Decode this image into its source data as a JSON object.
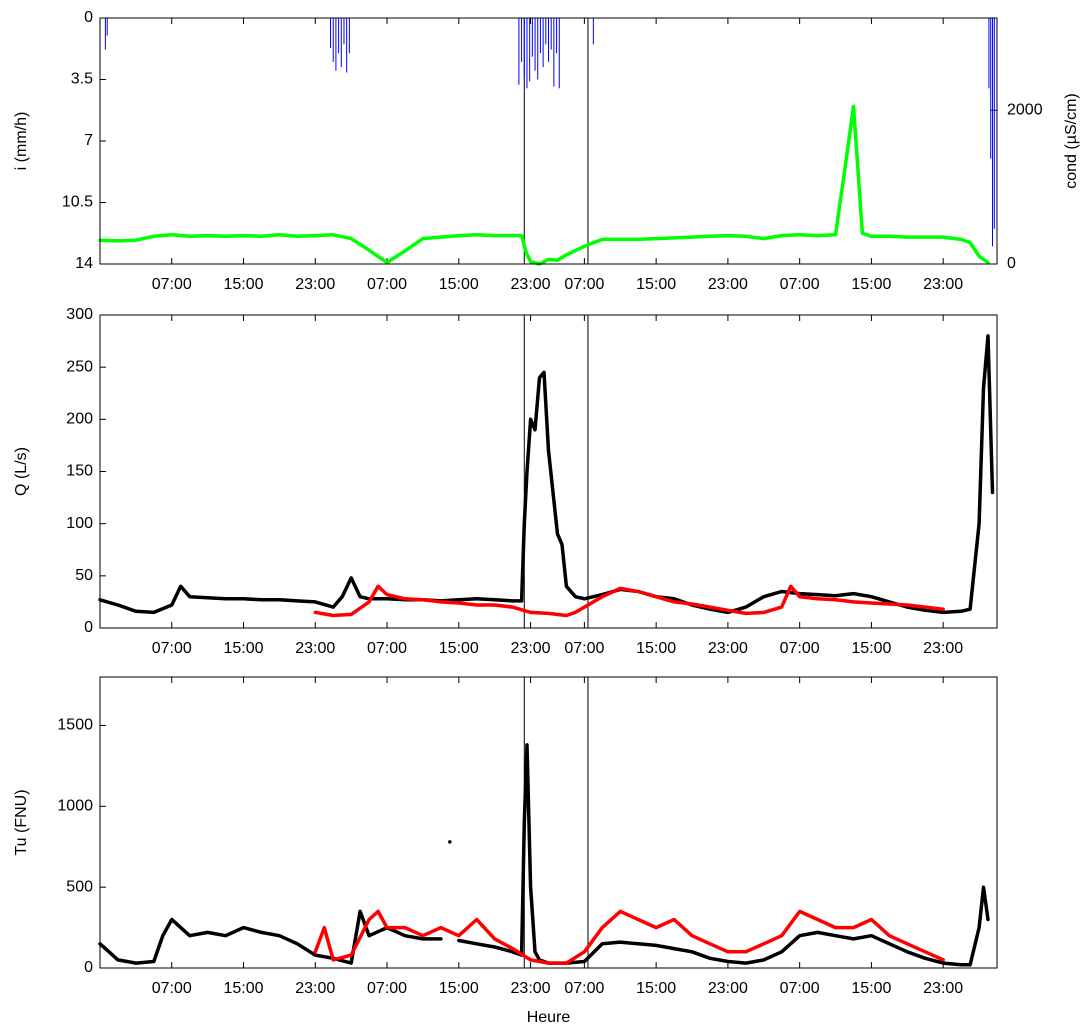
{
  "chart_data": [
    {
      "type": "line",
      "ylabel": "i (mm/h)",
      "y2label": "cond (µS/cm)",
      "xlim": [
        0,
        100
      ],
      "xticks": [
        {
          "value": 8,
          "label": "07:00"
        },
        {
          "value": 16,
          "label": "15:00"
        },
        {
          "value": 24,
          "label": "23:00"
        },
        {
          "value": 32,
          "label": "07:00"
        },
        {
          "value": 40,
          "label": "15:00"
        },
        {
          "value": 48,
          "label": "23:00"
        },
        {
          "value": 54,
          "label": "07:00"
        },
        {
          "value": 62,
          "label": "15:00"
        },
        {
          "value": 70,
          "label": "23:00"
        },
        {
          "value": 78,
          "label": "07:00"
        },
        {
          "value": 86,
          "label": "15:00"
        },
        {
          "value": 94,
          "label": "23:00"
        }
      ],
      "ylim": [
        14,
        0
      ],
      "yticks": [
        0,
        3.5,
        7,
        10.5,
        14
      ],
      "y2lim": [
        0,
        3200
      ],
      "y2ticks": [
        0,
        2000
      ],
      "vlines": [
        47.3,
        54.4
      ],
      "series": [
        {
          "type": "stem",
          "color": "#0000ff",
          "x": [
            0.6,
            0.8,
            25.7,
            26.0,
            26.3,
            26.6,
            26.9,
            27.2,
            27.5,
            27.8,
            46.7,
            47.0,
            47.3,
            47.6,
            47.9,
            48.2,
            48.5,
            48.8,
            49.1,
            49.4,
            49.7,
            50.0,
            50.3,
            50.6,
            50.9,
            51.2,
            55.0,
            99.1,
            99.3,
            99.5,
            99.7
          ],
          "values": [
            1.8,
            1.0,
            1.7,
            2.5,
            3.0,
            2.0,
            2.8,
            1.5,
            3.1,
            2.0,
            3.8,
            2.5,
            3.4,
            4.0,
            3.6,
            2.2,
            3.0,
            3.5,
            2.0,
            2.8,
            1.5,
            2.5,
            1.8,
            3.9,
            2.0,
            4.0,
            1.5,
            4.0,
            8.0,
            13.0,
            12.0
          ]
        },
        {
          "type": "line",
          "color": "#00ff00",
          "axis": "y2",
          "x": [
            0,
            2,
            4,
            6,
            8,
            10,
            12,
            14,
            16,
            18,
            20,
            22,
            24,
            26,
            28,
            30,
            32,
            34,
            36,
            38,
            40,
            42,
            44,
            46,
            47,
            47.5,
            48,
            49,
            50,
            51,
            52,
            54,
            56,
            58,
            60,
            62,
            64,
            66,
            68,
            70,
            72,
            74,
            76,
            78,
            80,
            82,
            83,
            84,
            85,
            86,
            88,
            90,
            92,
            94,
            96,
            97,
            98,
            99
          ],
          "values": [
            310,
            300,
            310,
            360,
            380,
            360,
            370,
            360,
            370,
            360,
            380,
            360,
            370,
            380,
            330,
            180,
            20,
            170,
            330,
            350,
            370,
            380,
            370,
            370,
            370,
            150,
            30,
            0,
            60,
            50,
            120,
            230,
            320,
            320,
            320,
            330,
            340,
            350,
            360,
            370,
            360,
            330,
            370,
            380,
            370,
            380,
            1200,
            2050,
            400,
            360,
            360,
            350,
            350,
            350,
            320,
            280,
            100,
            20
          ]
        }
      ]
    },
    {
      "type": "line",
      "ylabel": "Q (L/s)",
      "xlim": [
        0,
        100
      ],
      "xticks": [
        {
          "value": 8,
          "label": "07:00"
        },
        {
          "value": 16,
          "label": "15:00"
        },
        {
          "value": 24,
          "label": "23:00"
        },
        {
          "value": 32,
          "label": "07:00"
        },
        {
          "value": 40,
          "label": "15:00"
        },
        {
          "value": 48,
          "label": "23:00"
        },
        {
          "value": 54,
          "label": "07:00"
        },
        {
          "value": 62,
          "label": "15:00"
        },
        {
          "value": 70,
          "label": "23:00"
        },
        {
          "value": 78,
          "label": "07:00"
        },
        {
          "value": 86,
          "label": "15:00"
        },
        {
          "value": 94,
          "label": "23:00"
        }
      ],
      "ylim": [
        0,
        300
      ],
      "yticks": [
        0,
        50,
        100,
        150,
        200,
        250,
        300
      ],
      "vlines": [
        47.3,
        54.4
      ],
      "series": [
        {
          "type": "line",
          "color": "#000000",
          "x": [
            0,
            2,
            4,
            6,
            8,
            9,
            10,
            12,
            14,
            16,
            18,
            20,
            22,
            24,
            26,
            27,
            28,
            29,
            30,
            32,
            34,
            36,
            38,
            40,
            42,
            44,
            46,
            47,
            47.3,
            47.6,
            48,
            48.5,
            49,
            49.5,
            50,
            50.5,
            51,
            51.5,
            52,
            53,
            54,
            56,
            58,
            60,
            62,
            64,
            66,
            68,
            70,
            72,
            74,
            76,
            78,
            80,
            82,
            84,
            86,
            88,
            90,
            92,
            94,
            96,
            97,
            98,
            98.5,
            99,
            99.5
          ],
          "values": [
            27,
            22,
            16,
            15,
            22,
            40,
            30,
            29,
            28,
            28,
            27,
            27,
            26,
            25,
            20,
            30,
            48,
            30,
            28,
            28,
            27,
            27,
            26,
            27,
            28,
            27,
            26,
            26,
            100,
            150,
            200,
            190,
            240,
            245,
            170,
            130,
            90,
            80,
            40,
            30,
            28,
            32,
            37,
            35,
            30,
            28,
            22,
            18,
            15,
            20,
            30,
            35,
            33,
            32,
            31,
            33,
            30,
            25,
            20,
            17,
            15,
            16,
            18,
            100,
            230,
            280,
            130
          ]
        },
        {
          "type": "line",
          "color": "#ff0000",
          "x": [
            24,
            26,
            28,
            30,
            31,
            32,
            34,
            36,
            38,
            40,
            42,
            44,
            46,
            48,
            50,
            52,
            53,
            54,
            56,
            58,
            60,
            62,
            64,
            66,
            68,
            70,
            72,
            74,
            76,
            77,
            78,
            80,
            82,
            84,
            86,
            88,
            90,
            92,
            94
          ],
          "values": [
            15,
            12,
            13,
            25,
            40,
            32,
            28,
            27,
            25,
            24,
            22,
            22,
            20,
            15,
            14,
            12,
            15,
            20,
            30,
            38,
            35,
            30,
            25,
            23,
            20,
            17,
            14,
            15,
            20,
            40,
            30,
            28,
            27,
            25,
            24,
            23,
            22,
            20,
            18
          ]
        }
      ]
    },
    {
      "type": "line",
      "ylabel": "Tu (FNU)",
      "xlabel": "Heure",
      "xlim": [
        0,
        100
      ],
      "xticks": [
        {
          "value": 8,
          "label": "07:00"
        },
        {
          "value": 16,
          "label": "15:00"
        },
        {
          "value": 24,
          "label": "23:00"
        },
        {
          "value": 32,
          "label": "07:00"
        },
        {
          "value": 40,
          "label": "15:00"
        },
        {
          "value": 48,
          "label": "23:00"
        },
        {
          "value": 54,
          "label": "07:00"
        },
        {
          "value": 62,
          "label": "15:00"
        },
        {
          "value": 70,
          "label": "23:00"
        },
        {
          "value": 78,
          "label": "07:00"
        },
        {
          "value": 86,
          "label": "15:00"
        },
        {
          "value": 94,
          "label": "23:00"
        }
      ],
      "ylim": [
        0,
        1800
      ],
      "yticks": [
        0,
        500,
        1000,
        1500
      ],
      "vlines": [
        47.3,
        54.4
      ],
      "series": [
        {
          "type": "line",
          "color": "#000000",
          "x": [
            0,
            1,
            2,
            4,
            6,
            7,
            8,
            9,
            10,
            12,
            14,
            16,
            18,
            20,
            22,
            24,
            26,
            28,
            29,
            30,
            32,
            34,
            36,
            38,
            38.6,
            39,
            39.4,
            40,
            42,
            44,
            46,
            47,
            47.3,
            47.6,
            48,
            48.5,
            49,
            50,
            52,
            54,
            56,
            58,
            60,
            62,
            64,
            66,
            68,
            70,
            72,
            74,
            76,
            78,
            80,
            82,
            84,
            86,
            88,
            90,
            92,
            94,
            96,
            97,
            98,
            98.5,
            99
          ],
          "values": [
            150,
            100,
            50,
            30,
            40,
            200,
            300,
            250,
            200,
            220,
            200,
            250,
            220,
            200,
            150,
            80,
            60,
            30,
            350,
            200,
            250,
            200,
            180,
            180,
            null,
            780,
            null,
            170,
            150,
            130,
            100,
            80,
            900,
            1380,
            500,
            100,
            50,
            30,
            30,
            40,
            150,
            160,
            150,
            140,
            120,
            100,
            60,
            40,
            30,
            50,
            100,
            200,
            220,
            200,
            180,
            200,
            150,
            100,
            60,
            30,
            20,
            20,
            250,
            500,
            300
          ]
        },
        {
          "type": "line",
          "color": "#ff0000",
          "x": [
            24,
            25,
            26,
            28,
            30,
            31,
            32,
            34,
            36,
            38,
            40,
            42,
            44,
            46,
            48,
            50,
            52,
            54,
            56,
            58,
            60,
            62,
            64,
            66,
            68,
            70,
            72,
            74,
            76,
            78,
            80,
            82,
            84,
            86,
            88,
            90,
            92,
            94
          ],
          "values": [
            100,
            250,
            50,
            80,
            300,
            350,
            250,
            250,
            200,
            250,
            200,
            300,
            180,
            120,
            50,
            30,
            30,
            100,
            250,
            350,
            300,
            250,
            300,
            200,
            150,
            100,
            100,
            150,
            200,
            350,
            300,
            250,
            250,
            300,
            200,
            150,
            100,
            50
          ]
        }
      ]
    }
  ]
}
